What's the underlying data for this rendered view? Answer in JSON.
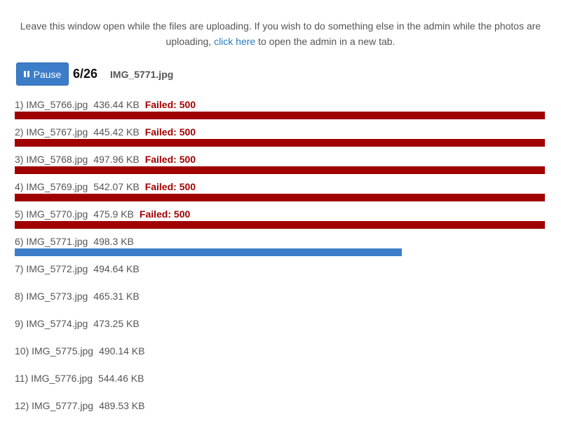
{
  "notice": {
    "text_before": "Leave this window open while the files are uploading. If you wish to do something else in the admin while the photos are uploading, ",
    "link_text": "click here",
    "text_after": " to open the admin in a new tab."
  },
  "status": {
    "pause_label": "Pause",
    "counter": "6/26",
    "current_file": "IMG_5771.jpg"
  },
  "colors": {
    "failed": "#a00000",
    "progress": "#3b7dc8",
    "link": "#2b7bb9"
  },
  "files": [
    {
      "label": "1) IMG_5766.jpg",
      "size": "436.44 KB",
      "status": "Failed: 500"
    },
    {
      "label": "2) IMG_5767.jpg",
      "size": "445.42 KB",
      "status": "Failed: 500"
    },
    {
      "label": "3) IMG_5768.jpg",
      "size": "497.96 KB",
      "status": "Failed: 500"
    },
    {
      "label": "4) IMG_5769.jpg",
      "size": "542.07 KB",
      "status": "Failed: 500"
    },
    {
      "label": "5) IMG_5770.jpg",
      "size": "475.9 KB",
      "status": "Failed: 500"
    },
    {
      "label": "6) IMG_5771.jpg",
      "size": "498.3 KB",
      "status": "",
      "progress": 0.73
    },
    {
      "label": "7) IMG_5772.jpg",
      "size": "494.64 KB",
      "status": ""
    },
    {
      "label": "8) IMG_5773.jpg",
      "size": "465.31 KB",
      "status": ""
    },
    {
      "label": "9) IMG_5774.jpg",
      "size": "473.25 KB",
      "status": ""
    },
    {
      "label": "10) IMG_5775.jpg",
      "size": "490.14 KB",
      "status": ""
    },
    {
      "label": "11) IMG_5776.jpg",
      "size": "544.46 KB",
      "status": ""
    },
    {
      "label": "12) IMG_5777.jpg",
      "size": "489.53 KB",
      "status": ""
    }
  ]
}
